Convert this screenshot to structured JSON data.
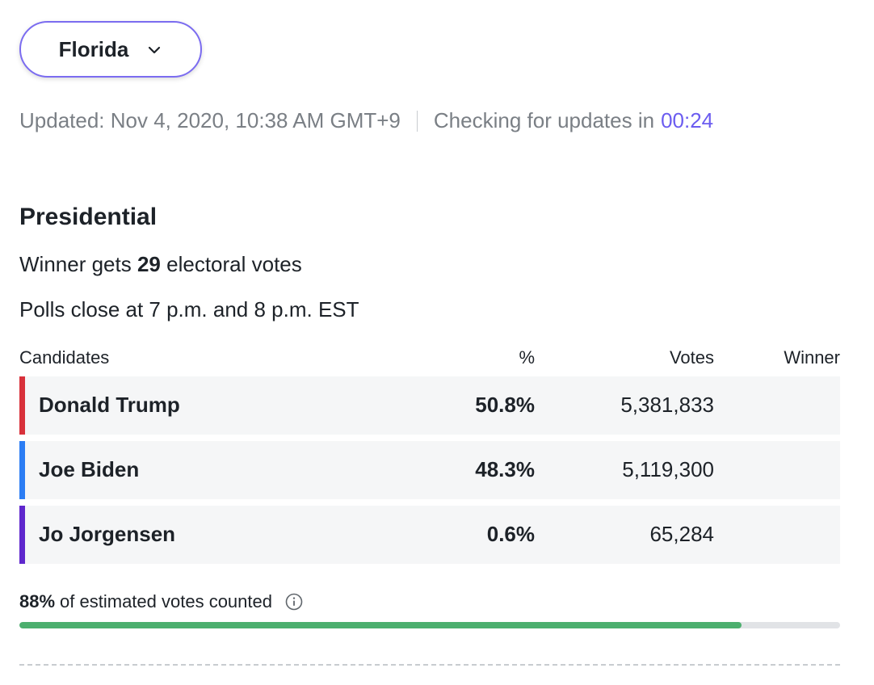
{
  "state_selector": {
    "label": "Florida",
    "icon": "chevron-down-icon"
  },
  "status": {
    "updated": "Updated: Nov 4, 2020, 10:38 AM GMT+9",
    "checking": "Checking for updates in",
    "countdown": "00:24"
  },
  "race": {
    "title": "Presidential",
    "winner_prefix": "Winner gets",
    "electoral_votes": "29",
    "winner_suffix": "electoral votes",
    "polls_close": "Polls close at 7 p.m. and 8 p.m. EST"
  },
  "table": {
    "headers": {
      "candidates": "Candidates",
      "pct": "%",
      "votes": "Votes",
      "winner": "Winner"
    },
    "rows": [
      {
        "name": "Donald Trump",
        "pct": "50.8%",
        "votes": "5,381,833",
        "winner": "",
        "color": "#d8313b"
      },
      {
        "name": "Joe Biden",
        "pct": "48.3%",
        "votes": "5,119,300",
        "winner": "",
        "color": "#2b7df4"
      },
      {
        "name": "Jo Jorgensen",
        "pct": "0.6%",
        "votes": "65,284",
        "winner": "",
        "color": "#5f27cd"
      }
    ]
  },
  "counted": {
    "percent_label": "88%",
    "text": "of estimated votes counted",
    "progress": 0.88,
    "icon": "info-icon"
  },
  "colors": {
    "accent": "#6b5cf0",
    "progress": "#4caf6e"
  }
}
